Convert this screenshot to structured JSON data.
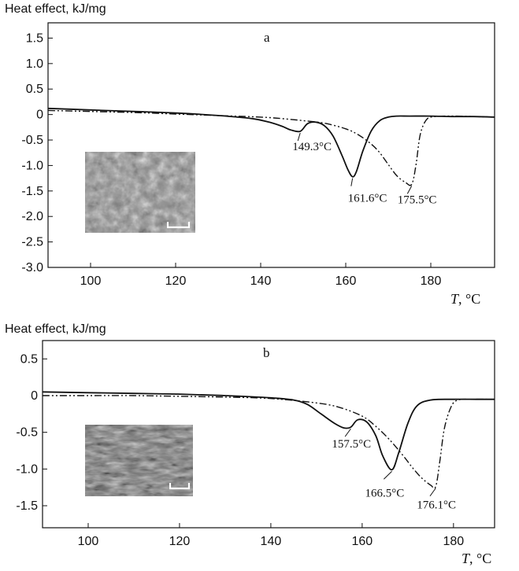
{
  "chart_data": [
    {
      "type": "line",
      "panel_label": "a",
      "ylabel": "Heat effect, kJ/mg",
      "xlabel_italic": "T",
      "xlabel_unit": ", °C",
      "xlim": [
        90,
        195
      ],
      "ylim": [
        -3.0,
        1.8
      ],
      "x_ticks": [
        "100",
        "120",
        "140",
        "160",
        "180"
      ],
      "x_tick_values": [
        100,
        120,
        140,
        160,
        180
      ],
      "y_ticks": [
        "1.5",
        "1.0",
        "0.5",
        "0",
        "-0.5",
        "-1.0",
        "-1.5",
        "-2.0",
        "-2.5",
        "-3.0"
      ],
      "y_tick_values": [
        1.5,
        1.0,
        0.5,
        0,
        -0.5,
        -1.0,
        -1.5,
        -2.0,
        -2.5,
        -3.0
      ],
      "series": [
        {
          "style": "solid",
          "x": [
            90,
            100,
            110,
            120,
            130,
            138,
            142,
            145,
            147,
            149.3,
            151,
            153,
            155,
            157,
            159,
            160.5,
            161.6,
            162.5,
            164,
            166,
            168,
            170,
            172,
            175,
            180,
            185,
            190,
            195
          ],
          "y": [
            0.12,
            0.09,
            0.06,
            0.03,
            -0.02,
            -0.08,
            -0.15,
            -0.23,
            -0.3,
            -0.33,
            -0.18,
            -0.15,
            -0.22,
            -0.42,
            -0.78,
            -1.08,
            -1.22,
            -1.12,
            -0.72,
            -0.32,
            -0.12,
            -0.05,
            -0.03,
            -0.03,
            -0.03,
            -0.04,
            -0.04,
            -0.05
          ]
        },
        {
          "style": "dash-dot-dot",
          "x": [
            90,
            100,
            110,
            120,
            130,
            140,
            145,
            150,
            155,
            160,
            163,
            166,
            168,
            170,
            172,
            174,
            175.5,
            176.5,
            177.5,
            179,
            181,
            185,
            190,
            195
          ],
          "y": [
            0.08,
            0.06,
            0.04,
            0.01,
            -0.02,
            -0.05,
            -0.08,
            -0.12,
            -0.17,
            -0.28,
            -0.4,
            -0.58,
            -0.75,
            -0.98,
            -1.2,
            -1.33,
            -1.37,
            -1.0,
            -0.4,
            -0.1,
            -0.04,
            -0.03,
            -0.04,
            -0.05
          ]
        }
      ],
      "annotations": [
        {
          "text": "149.3°C",
          "x": 149.3,
          "y": -0.33
        },
        {
          "text": "161.6°C",
          "x": 161.6,
          "y": -1.22
        },
        {
          "text": "175.5°C",
          "x": 175.5,
          "y": -1.37
        }
      ]
    },
    {
      "type": "line",
      "panel_label": "b",
      "ylabel": "Heat effect, kJ/mg",
      "xlabel_italic": "T",
      "xlabel_unit": ", °C",
      "xlim": [
        90,
        189
      ],
      "ylim": [
        -1.8,
        0.75
      ],
      "x_ticks": [
        "100",
        "120",
        "140",
        "160",
        "180"
      ],
      "x_tick_values": [
        100,
        120,
        140,
        160,
        180
      ],
      "y_ticks": [
        "0.5",
        "0",
        "-0.5",
        "-1.0",
        "-1.5"
      ],
      "y_tick_values": [
        0.5,
        0,
        -0.5,
        -1.0,
        -1.5
      ],
      "series": [
        {
          "style": "solid",
          "x": [
            90,
            100,
            110,
            120,
            130,
            140,
            145,
            148,
            151,
            154,
            156,
            157.5,
            159,
            161,
            163,
            164.5,
            166.5,
            168,
            170,
            172,
            175,
            180,
            185,
            189
          ],
          "y": [
            0.05,
            0.04,
            0.03,
            0.02,
            0.0,
            -0.03,
            -0.06,
            -0.12,
            -0.25,
            -0.38,
            -0.44,
            -0.43,
            -0.33,
            -0.36,
            -0.55,
            -0.82,
            -1.01,
            -0.78,
            -0.38,
            -0.14,
            -0.06,
            -0.05,
            -0.05,
            -0.05
          ]
        },
        {
          "style": "dash-dot-dot",
          "x": [
            90,
            100,
            110,
            120,
            130,
            140,
            150,
            155,
            160,
            163,
            166,
            169,
            171,
            173,
            175,
            176.1,
            177,
            178,
            179.5,
            181,
            184,
            189
          ],
          "y": [
            0.0,
            0.0,
            0.0,
            -0.01,
            -0.02,
            -0.04,
            -0.1,
            -0.16,
            -0.28,
            -0.42,
            -0.6,
            -0.82,
            -0.98,
            -1.12,
            -1.22,
            -1.24,
            -0.9,
            -0.45,
            -0.15,
            -0.06,
            -0.05,
            -0.05
          ]
        }
      ],
      "annotations": [
        {
          "text": "157.5°C",
          "x": 157.5,
          "y": -0.43
        },
        {
          "text": "166.5°C",
          "x": 166.5,
          "y": -1.01
        },
        {
          "text": "176.1°C",
          "x": 176.1,
          "y": -1.24
        }
      ]
    }
  ]
}
